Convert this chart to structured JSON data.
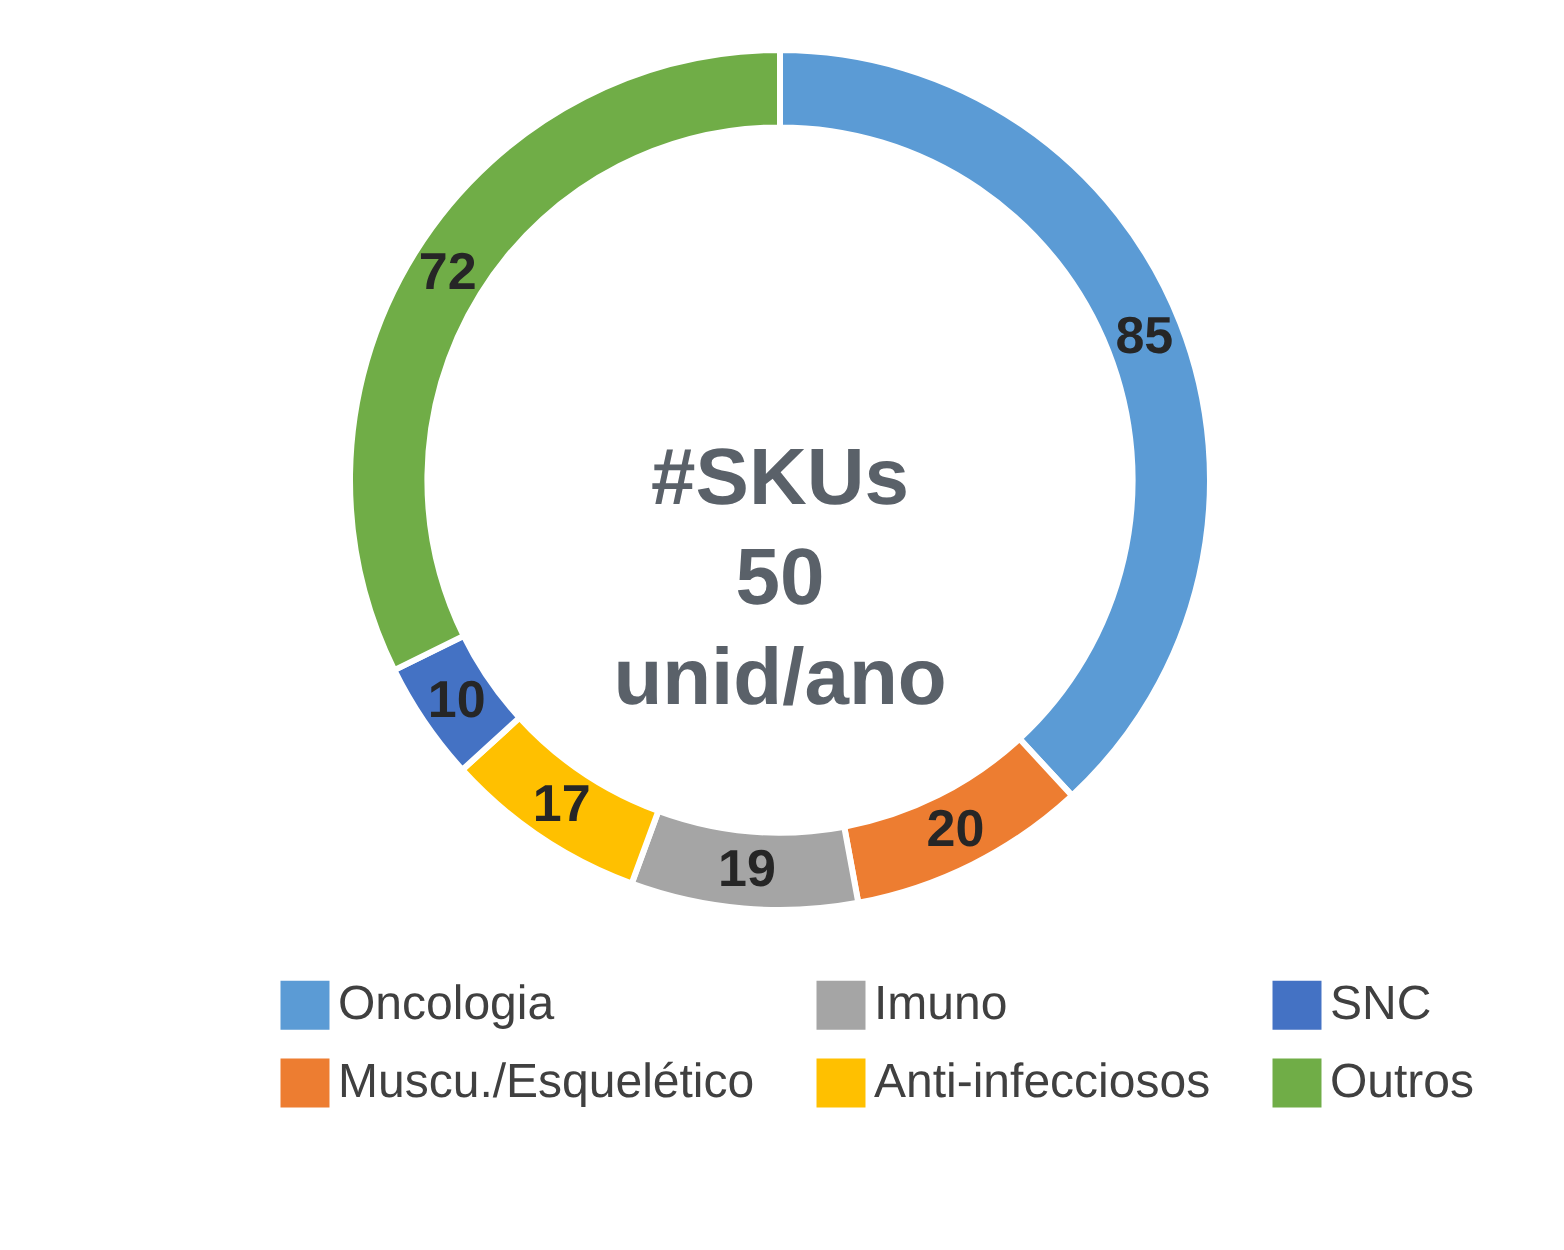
{
  "chart_data": {
    "type": "donut",
    "categories": [
      "Oncologia",
      "Muscu./Esquelético",
      "Imuno",
      "Anti-infecciosos",
      "SNC",
      "Outros"
    ],
    "values": [
      85,
      20,
      19,
      17,
      10,
      72
    ],
    "colors": [
      "#5b9bd5",
      "#ed7d31",
      "#a5a5a5",
      "#ffc000",
      "#4472c4",
      "#70ad47"
    ],
    "annotations": [
      "#SKUs",
      "50",
      "unid/ano"
    ],
    "data_labels": true,
    "legend": "bottom"
  }
}
